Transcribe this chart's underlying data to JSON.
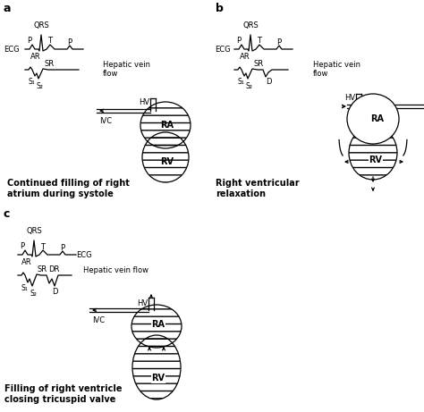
{
  "background": "#ffffff",
  "panel_a_label": "a",
  "panel_b_label": "b",
  "panel_c_label": "c",
  "text_a_caption": "Continued filling of right\natrium during systole",
  "text_b_caption": "Right ventricular\nrelaxation",
  "text_c_caption": "Filling of right ventricle\nclosing tricuspid valve",
  "label_ECG": "ECG",
  "label_QRS": "QRS",
  "label_P": "P",
  "label_T": "T",
  "label_AR": "AR",
  "label_SR": "SR",
  "label_DR": "DR",
  "label_S1": "S₁",
  "label_S2": "S₂",
  "label_D": "D",
  "label_HV": "HV",
  "label_IVC": "IVC",
  "label_RA": "RA",
  "label_RV": "RV",
  "lw": 0.9,
  "fontsize_small": 6.0,
  "fontsize_caption": 7.0,
  "fontsize_panel": 9
}
